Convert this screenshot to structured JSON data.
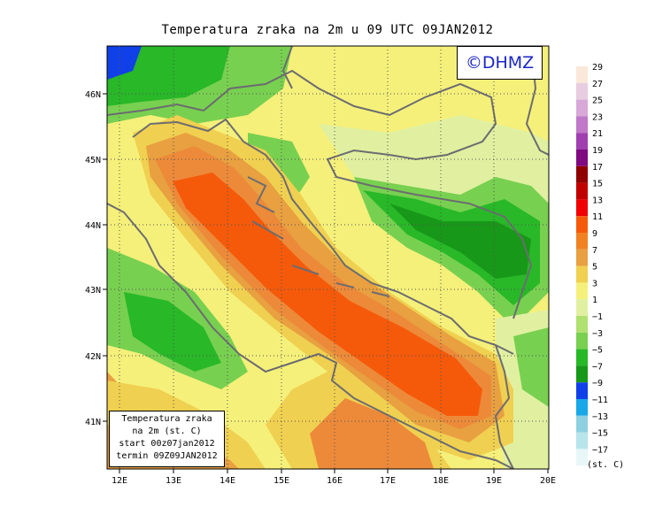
{
  "title": "Temperatura zraka na 2m u 09 UTC 09JAN2012",
  "watermark": "©DHMZ",
  "info_box": {
    "line1": "Temperatura zraka",
    "line2": "na 2m (st. C)",
    "line3": "start 00z07jan2012",
    "line4": "termin 09Z09JAN2012"
  },
  "lat_labels": [
    "46N",
    "45N",
    "44N",
    "43N",
    "42N",
    "41N"
  ],
  "lon_labels": [
    "12E",
    "13E",
    "14E",
    "15E",
    "16E",
    "17E",
    "18E",
    "19E",
    "20E"
  ],
  "colorbar": {
    "unit": "(st. C)",
    "levels": [
      "29",
      "27",
      "25",
      "23",
      "21",
      "19",
      "17",
      "15",
      "13",
      "11",
      "9",
      "7",
      "5",
      "3",
      "1",
      "−1",
      "−3",
      "−5",
      "−7",
      "−9",
      "−11",
      "−13",
      "−15",
      "−17"
    ],
    "colors": [
      "#fbe8d8",
      "#e8cce0",
      "#d8a8d8",
      "#c078c8",
      "#a040b0",
      "#800a80",
      "#900000",
      "#c00000",
      "#f00000",
      "#f55a0a",
      "#f08224",
      "#e8a040",
      "#f0d050",
      "#f5f07a",
      "#e0f0a0",
      "#b0e070",
      "#78d050",
      "#28b828",
      "#189818",
      "#1040e8",
      "#18a8e8",
      "#8ed0e0",
      "#b8e4ec",
      "#e8f6f8"
    ]
  },
  "colors": {
    "sea_core": "#f55a0a",
    "sea_mid": "#ec8a3a",
    "coast_yellow": "#f0d050",
    "land_green": "#28b828",
    "land_light": "#e0f0a0",
    "border": "#6c6c70"
  }
}
